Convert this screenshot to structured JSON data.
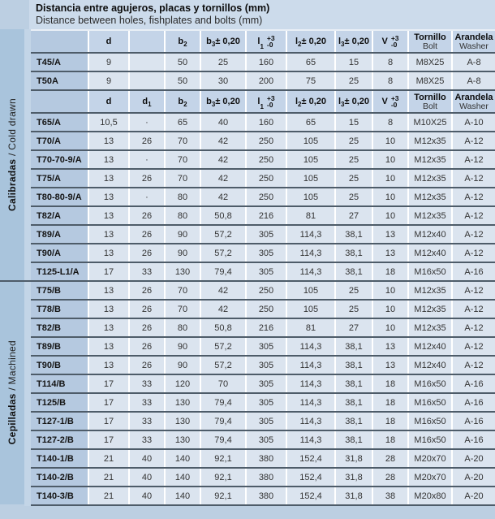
{
  "title": {
    "line1": "Distancia entre agujeros, placas y tornillos (mm)",
    "line2": "Distance between holes, fishplates and bolts (mm)"
  },
  "sidebar": {
    "sections": [
      {
        "id": "cold-drawn",
        "bold": "Calibradas",
        "regular": " / Cold drawn"
      },
      {
        "id": "machined",
        "bold": "Cepilladas",
        "regular": " / Machined"
      }
    ]
  },
  "colors": {
    "page_bg": "#bccfe2",
    "title_bg": "#ccdbeb",
    "header_cell": "#c4d4e8",
    "label_cell": "#b5c9e0",
    "data_cell": "#dbe4ef",
    "sidebar": "#a9c4dc",
    "line": "#4e5c69"
  },
  "table": {
    "column_keys": [
      "label",
      "d",
      "d1",
      "b2",
      "b3",
      "l1",
      "l2",
      "l3",
      "v",
      "bolt",
      "washer"
    ],
    "rows": [
      {
        "type": "header",
        "cells": [
          {
            "base": ""
          },
          {
            "base": "d"
          },
          {
            "base": ""
          },
          {
            "base": "b",
            "sub": "2"
          },
          {
            "base": "b",
            "sub": "3",
            "rest": " ± 0,20"
          },
          {
            "base": "l",
            "sub": "1",
            "tol": [
              "+3",
              "-0"
            ]
          },
          {
            "base": "l",
            "sub": "2",
            "rest": "± 0,20"
          },
          {
            "base": "l",
            "sub": "3",
            "rest": " ± 0,20"
          },
          {
            "base": "V",
            "tol": [
              "+3",
              "-0"
            ]
          },
          {
            "base": "Tornillo",
            "sub2": "Bolt"
          },
          {
            "base": "Arandela",
            "sub2": "Washer"
          }
        ]
      },
      {
        "type": "data",
        "section": "cold-drawn",
        "label": "T45/A",
        "values": [
          "9",
          "",
          "50",
          "25",
          "160",
          "65",
          "15",
          "8",
          "M8X25",
          "A-8"
        ]
      },
      {
        "type": "data",
        "section": "cold-drawn",
        "label": "T50A",
        "values": [
          "9",
          "",
          "50",
          "30",
          "200",
          "75",
          "25",
          "8",
          "M8X25",
          "A-8"
        ]
      },
      {
        "type": "header",
        "cells": [
          {
            "base": ""
          },
          {
            "base": "d"
          },
          {
            "base": "d",
            "sub": "1"
          },
          {
            "base": "b",
            "sub": "2"
          },
          {
            "base": "b",
            "sub": "3",
            "rest": " ± 0,20"
          },
          {
            "base": "l",
            "sub": "1",
            "tol": [
              "+3",
              "-0"
            ]
          },
          {
            "base": "l",
            "sub": "2",
            "rest": " ± 0,20"
          },
          {
            "base": "l",
            "sub": "3",
            "rest": " ± 0,20"
          },
          {
            "base": "V",
            "tol": [
              "+3",
              "-0"
            ]
          },
          {
            "base": "Tornillo",
            "sub2": "Bolt"
          },
          {
            "base": "Arandela",
            "sub2": "Washer"
          }
        ]
      },
      {
        "type": "data",
        "section": "cold-drawn",
        "label": "T65/A",
        "values": [
          "10,5",
          "·",
          "65",
          "40",
          "160",
          "65",
          "15",
          "8",
          "M10X25",
          "A-10"
        ]
      },
      {
        "type": "data",
        "section": "cold-drawn",
        "label": "T70/A",
        "values": [
          "13",
          "26",
          "70",
          "42",
          "250",
          "105",
          "25",
          "10",
          "M12x35",
          "A-12"
        ]
      },
      {
        "type": "data",
        "section": "cold-drawn",
        "label": "T70-70-9/A",
        "values": [
          "13",
          "·",
          "70",
          "42",
          "250",
          "105",
          "25",
          "10",
          "M12x35",
          "A-12"
        ]
      },
      {
        "type": "data",
        "section": "cold-drawn",
        "label": "T75/A",
        "values": [
          "13",
          "26",
          "70",
          "42",
          "250",
          "105",
          "25",
          "10",
          "M12x35",
          "A-12"
        ]
      },
      {
        "type": "data",
        "section": "cold-drawn",
        "label": "T80-80-9/A",
        "values": [
          "13",
          "·",
          "80",
          "42",
          "250",
          "105",
          "25",
          "10",
          "M12x35",
          "A-12"
        ]
      },
      {
        "type": "data",
        "section": "cold-drawn",
        "label": "T82/A",
        "values": [
          "13",
          "26",
          "80",
          "50,8",
          "216",
          "81",
          "27",
          "10",
          "M12x35",
          "A-12"
        ]
      },
      {
        "type": "data",
        "section": "cold-drawn",
        "label": "T89/A",
        "values": [
          "13",
          "26",
          "90",
          "57,2",
          "305",
          "114,3",
          "38,1",
          "13",
          "M12x40",
          "A-12"
        ]
      },
      {
        "type": "data",
        "section": "cold-drawn",
        "label": "T90/A",
        "values": [
          "13",
          "26",
          "90",
          "57,2",
          "305",
          "114,3",
          "38,1",
          "13",
          "M12x40",
          "A-12"
        ]
      },
      {
        "type": "data",
        "section": "cold-drawn",
        "label": "T125-L1/A",
        "values": [
          "17",
          "33",
          "130",
          "79,4",
          "305",
          "114,3",
          "38,1",
          "18",
          "M16x50",
          "A-16"
        ]
      },
      {
        "type": "data",
        "section": "machined",
        "label": "T75/B",
        "values": [
          "13",
          "26",
          "70",
          "42",
          "250",
          "105",
          "25",
          "10",
          "M12x35",
          "A-12"
        ]
      },
      {
        "type": "data",
        "section": "machined",
        "label": "T78/B",
        "values": [
          "13",
          "26",
          "70",
          "42",
          "250",
          "105",
          "25",
          "10",
          "M12x35",
          "A-12"
        ]
      },
      {
        "type": "data",
        "section": "machined",
        "label": "T82/B",
        "values": [
          "13",
          "26",
          "80",
          "50,8",
          "216",
          "81",
          "27",
          "10",
          "M12x35",
          "A-12"
        ]
      },
      {
        "type": "data",
        "section": "machined",
        "label": "T89/B",
        "values": [
          "13",
          "26",
          "90",
          "57,2",
          "305",
          "114,3",
          "38,1",
          "13",
          "M12x40",
          "A-12"
        ]
      },
      {
        "type": "data",
        "section": "machined",
        "label": "T90/B",
        "values": [
          "13",
          "26",
          "90",
          "57,2",
          "305",
          "114,3",
          "38,1",
          "13",
          "M12x40",
          "A-12"
        ]
      },
      {
        "type": "data",
        "section": "machined",
        "label": "T114/B",
        "values": [
          "17",
          "33",
          "120",
          "70",
          "305",
          "114,3",
          "38,1",
          "18",
          "M16x50",
          "A-16"
        ]
      },
      {
        "type": "data",
        "section": "machined",
        "label": "T125/B",
        "values": [
          "17",
          "33",
          "130",
          "79,4",
          "305",
          "114,3",
          "38,1",
          "18",
          "M16x50",
          "A-16"
        ]
      },
      {
        "type": "data",
        "section": "machined",
        "label": "T127-1/B",
        "values": [
          "17",
          "33",
          "130",
          "79,4",
          "305",
          "114,3",
          "38,1",
          "18",
          "M16x50",
          "A-16"
        ]
      },
      {
        "type": "data",
        "section": "machined",
        "label": "T127-2/B",
        "values": [
          "17",
          "33",
          "130",
          "79,4",
          "305",
          "114,3",
          "38,1",
          "18",
          "M16x50",
          "A-16"
        ]
      },
      {
        "type": "data",
        "section": "machined",
        "label": "T140-1/B",
        "values": [
          "21",
          "40",
          "140",
          "92,1",
          "380",
          "152,4",
          "31,8",
          "28",
          "M20x70",
          "A-20"
        ]
      },
      {
        "type": "data",
        "section": "machined",
        "label": "T140-2/B",
        "values": [
          "21",
          "40",
          "140",
          "92,1",
          "380",
          "152,4",
          "31,8",
          "28",
          "M20x70",
          "A-20"
        ]
      },
      {
        "type": "data",
        "section": "machined",
        "label": "T140-3/B",
        "values": [
          "21",
          "40",
          "140",
          "92,1",
          "380",
          "152,4",
          "31,8",
          "38",
          "M20x80",
          "A-20"
        ]
      }
    ]
  }
}
